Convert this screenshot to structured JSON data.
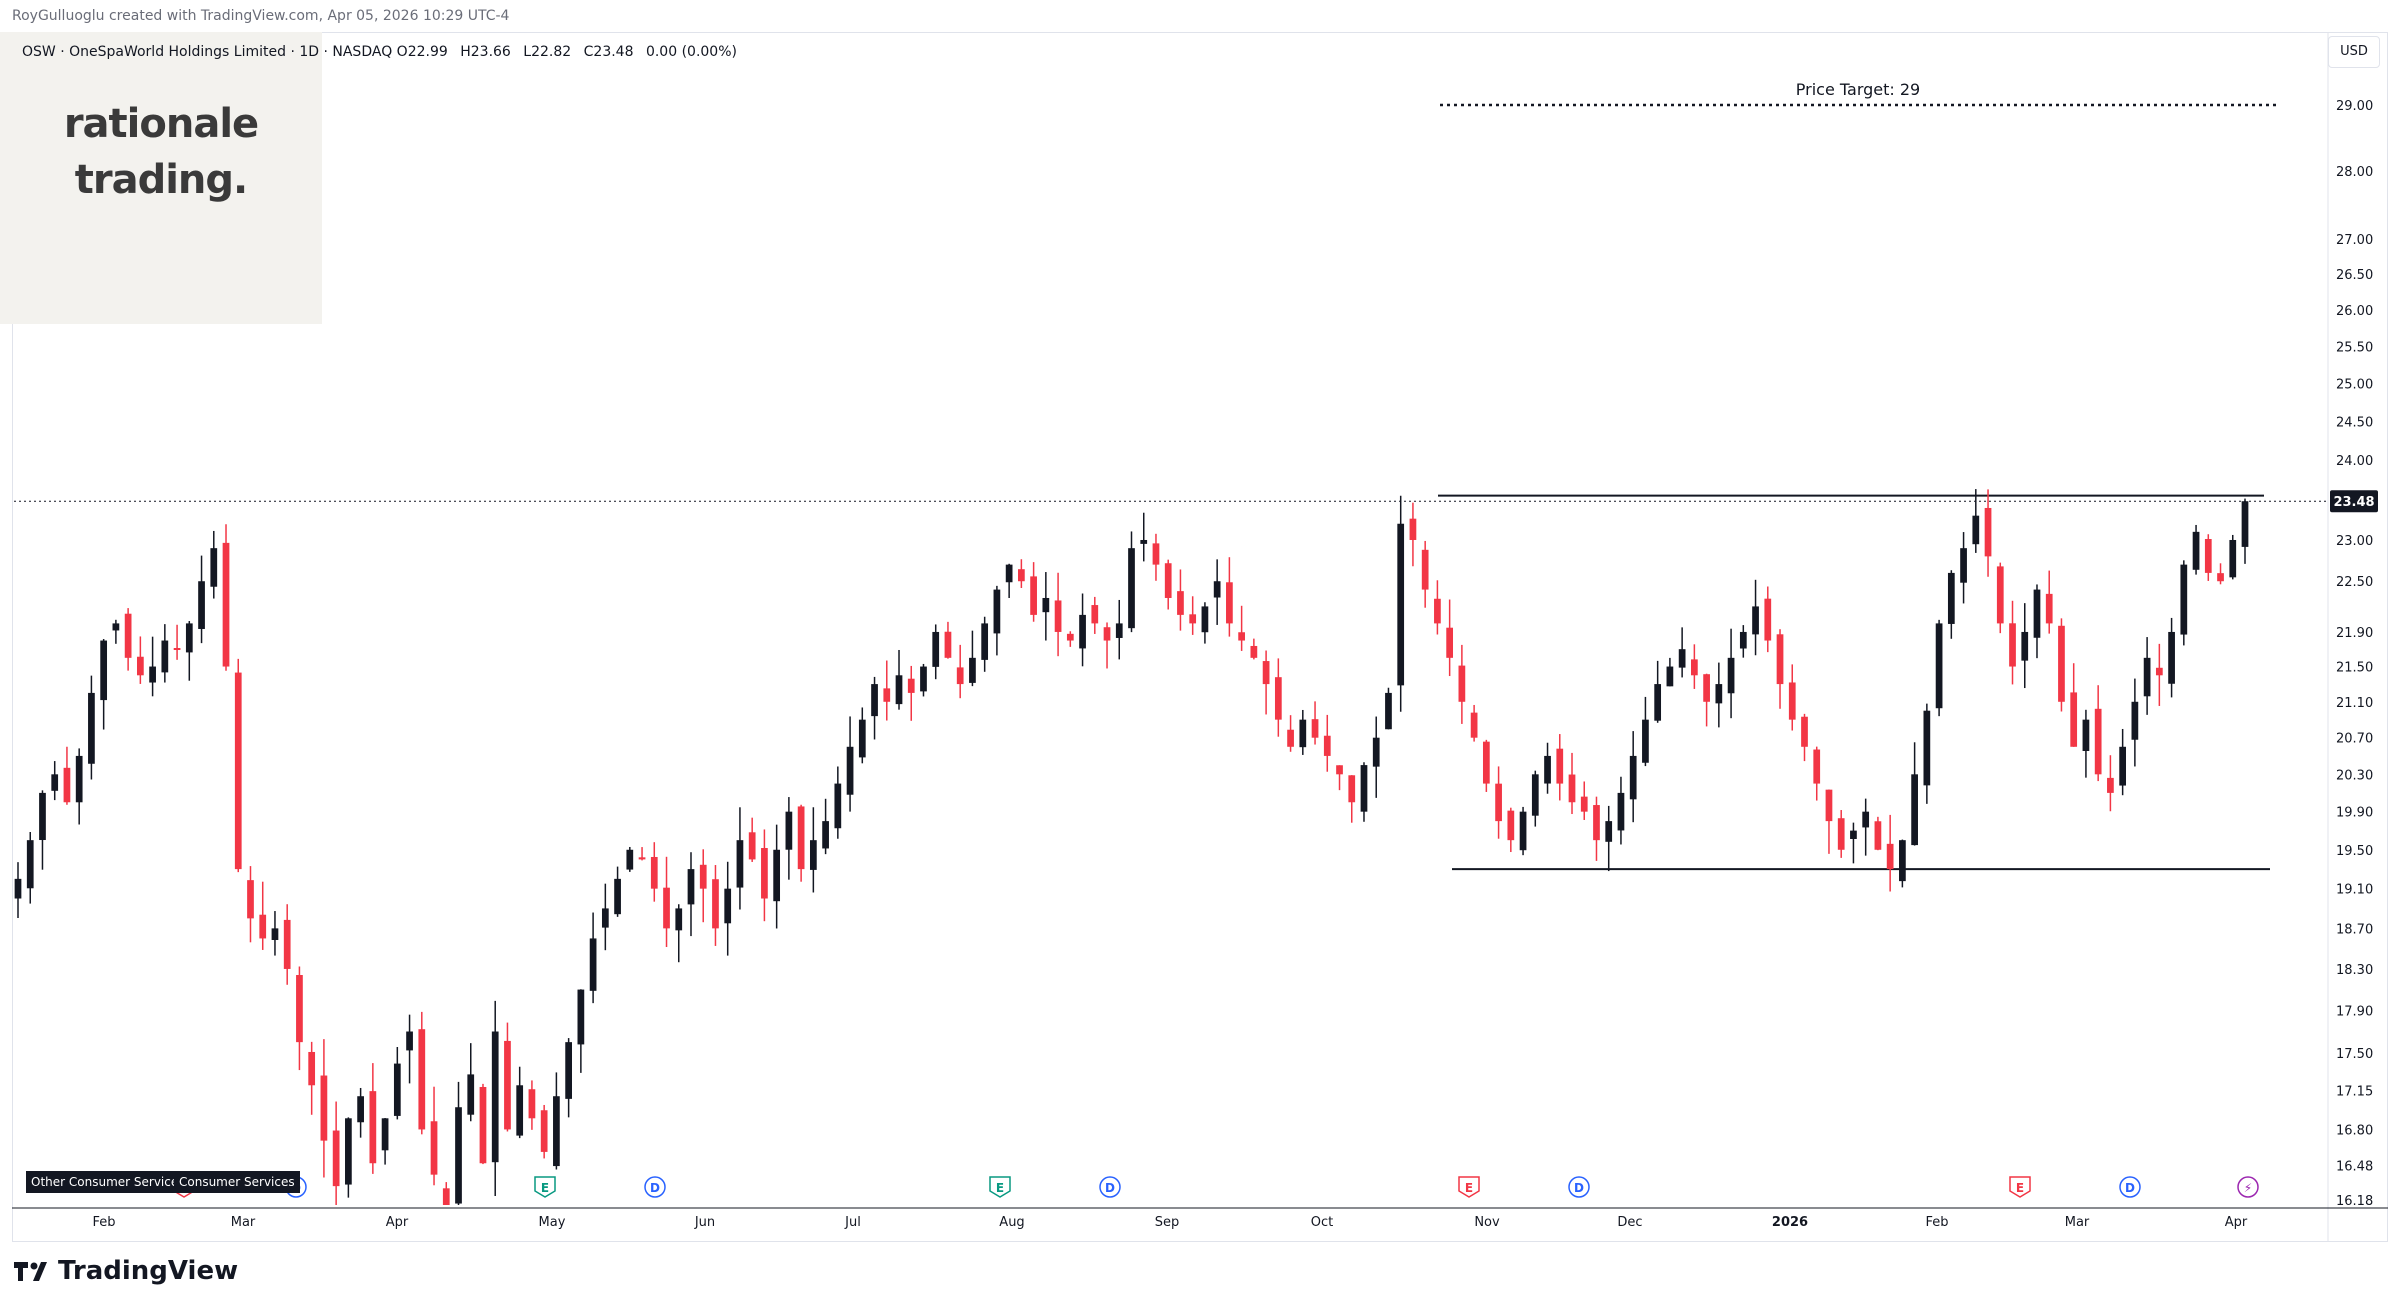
{
  "header": {
    "author_line": "RoyGulluoglu created with TradingView.com,",
    "date_line": "Apr 05, 2026 10:29 UTC-4"
  },
  "legend": {
    "symbol_line": "OSW · OneSpaWorld Holdings Limited · 1D · NASDAQ",
    "open": "O22.99",
    "high": "H23.66",
    "low": "L22.82",
    "close": "C23.48",
    "change": "0.00 (0.00%)"
  },
  "logo": {
    "line1": "rationale",
    "line2": "trading."
  },
  "currency_button": "USD",
  "brand": "TradingView",
  "sector_tags": [
    "Other Consumer Services",
    "Consumer Services"
  ],
  "colors": {
    "up": "#131722",
    "down": "#f23645",
    "price_label_bg": "#131722",
    "dividend": "#2962ff",
    "earnings_red": "#f23645",
    "earnings_green": "#089981",
    "split": "#9c27b0"
  },
  "chart_data": {
    "type": "candlestick",
    "symbol": "OSW",
    "interval": "1D",
    "ylim": [
      16.18,
      29.6
    ],
    "y_ticks": [
      "29.00",
      "28.00",
      "27.00",
      "26.50",
      "26.00",
      "25.50",
      "25.00",
      "24.50",
      "24.00",
      "23.48",
      "23.00",
      "22.50",
      "21.90",
      "21.50",
      "21.10",
      "20.70",
      "20.30",
      "19.90",
      "19.50",
      "19.10",
      "18.70",
      "18.30",
      "17.90",
      "17.50",
      "17.15",
      "16.80",
      "16.48",
      "16.18"
    ],
    "current_price": "23.48",
    "x_ticks": [
      "Feb",
      "Mar",
      "Apr",
      "May",
      "Jun",
      "Jul",
      "Aug",
      "Sep",
      "Oct",
      "Nov",
      "Dec",
      "2026",
      "Feb",
      "Mar",
      "Apr"
    ],
    "annotations": {
      "price_target_label": "Price Target: 29",
      "price_target": 29,
      "resistance": 23.55,
      "support": 19.3
    },
    "events": [
      {
        "type": "E",
        "month": "Feb",
        "color": "red"
      },
      {
        "type": "D",
        "month": "Mar"
      },
      {
        "type": "E",
        "month": "May",
        "color": "green"
      },
      {
        "type": "D",
        "month": "May"
      },
      {
        "type": "E",
        "month": "Aug",
        "color": "green"
      },
      {
        "type": "D",
        "month": "Aug"
      },
      {
        "type": "E",
        "month": "Oct",
        "color": "red"
      },
      {
        "type": "D",
        "month": "Nov"
      },
      {
        "type": "E",
        "month": "Feb",
        "color": "red"
      },
      {
        "type": "D",
        "month": "Mar"
      },
      {
        "type": "S",
        "month": "Apr",
        "color": "purple"
      }
    ],
    "closes": [
      19.2,
      19.6,
      20.1,
      20.3,
      20.0,
      20.5,
      21.2,
      21.8,
      22.0,
      21.6,
      21.4,
      21.5,
      21.8,
      21.7,
      22.0,
      22.5,
      22.9,
      21.5,
      19.3,
      18.8,
      18.6,
      18.7,
      18.3,
      17.6,
      17.2,
      16.7,
      16.3,
      16.9,
      17.1,
      16.5,
      16.9,
      17.4,
      17.7,
      16.8,
      16.4,
      16.1,
      17.0,
      17.3,
      16.5,
      17.7,
      16.8,
      17.2,
      16.9,
      16.6,
      17.1,
      17.6,
      18.1,
      18.6,
      18.9,
      19.2,
      19.5,
      19.4,
      19.1,
      18.7,
      18.9,
      19.3,
      19.1,
      18.7,
      19.1,
      19.6,
      19.4,
      19.0,
      19.5,
      19.9,
      19.3,
      19.6,
      19.8,
      20.2,
      20.6,
      20.9,
      21.3,
      21.1,
      21.4,
      21.2,
      21.5,
      21.9,
      21.6,
      21.3,
      21.6,
      22.0,
      22.4,
      22.7,
      22.5,
      22.1,
      22.3,
      21.9,
      21.8,
      22.1,
      22.0,
      21.8,
      22.0,
      22.9,
      23.0,
      22.7,
      22.3,
      22.1,
      22.0,
      22.2,
      22.5,
      22.0,
      21.8,
      21.6,
      21.3,
      20.9,
      20.6,
      20.9,
      20.7,
      20.5,
      20.3,
      20.0,
      20.4,
      20.7,
      21.2,
      23.2,
      23.0,
      22.4,
      22.0,
      21.6,
      21.1,
      20.7,
      20.2,
      19.8,
      19.6,
      19.9,
      20.3,
      20.5,
      20.2,
      20.0,
      19.9,
      19.6,
      19.8,
      20.1,
      20.5,
      20.9,
      21.3,
      21.5,
      21.7,
      21.4,
      21.1,
      21.3,
      21.6,
      21.9,
      22.2,
      21.8,
      21.3,
      20.9,
      20.6,
      20.2,
      19.8,
      19.5,
      19.7,
      19.9,
      19.5,
      19.3,
      19.6,
      20.3,
      21.0,
      22.0,
      22.6,
      22.9,
      23.3,
      22.8,
      22.0,
      21.5,
      21.9,
      22.4,
      22.0,
      21.1,
      20.6,
      20.9,
      20.3,
      20.1,
      20.6,
      21.1,
      21.6,
      21.4,
      21.9,
      22.7,
      23.1,
      22.6,
      22.5,
      23.0,
      23.48
    ]
  }
}
